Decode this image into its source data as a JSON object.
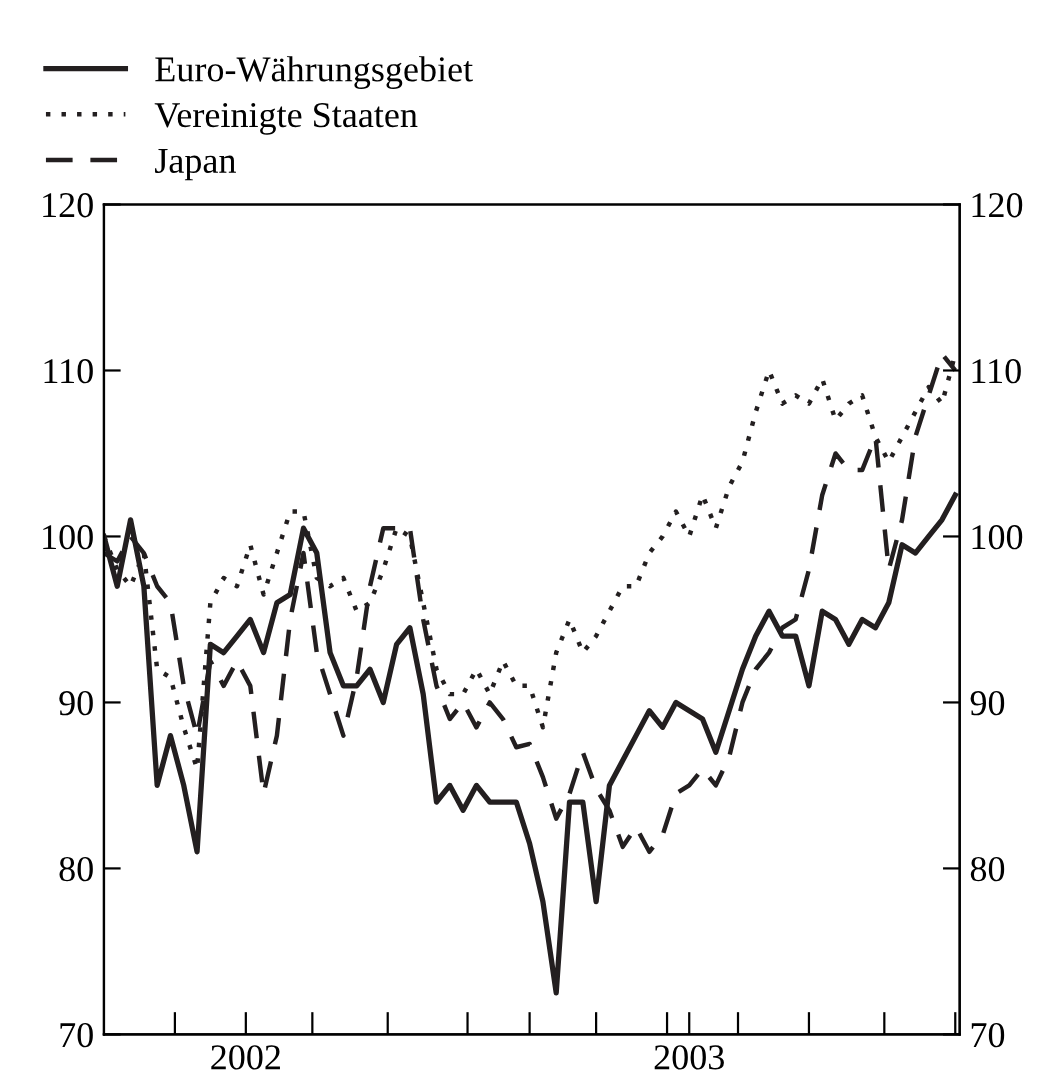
{
  "chart_data": {
    "type": "line",
    "x": [
      2002.18,
      2002.21,
      2002.24,
      2002.27,
      2002.3,
      2002.33,
      2002.36,
      2002.39,
      2002.42,
      2002.45,
      2002.48,
      2002.51,
      2002.54,
      2002.57,
      2002.6,
      2002.63,
      2002.66,
      2002.69,
      2002.72,
      2002.75,
      2002.78,
      2002.81,
      2002.84,
      2002.87,
      2002.9,
      2002.93,
      2002.96,
      2002.99,
      2003.02,
      2003.05,
      2003.08,
      2003.11,
      2003.14,
      2003.17,
      2003.2,
      2003.23,
      2003.26,
      2003.29,
      2003.32,
      2003.35,
      2003.38,
      2003.41,
      2003.44,
      2003.47,
      2003.5,
      2003.53,
      2003.56,
      2003.59,
      2003.62,
      2003.65,
      2003.68,
      2003.71,
      2003.74,
      2003.77,
      2003.8,
      2003.83,
      2003.86,
      2003.89,
      2003.92,
      2003.95,
      2003.98,
      2004.01,
      2004.04,
      2004.07,
      2004.1
    ],
    "series": [
      {
        "name": "Euro-Währungsgebiet",
        "color": "#231f20",
        "line_style": "solid",
        "values": [
          100,
          97,
          101,
          97,
          85,
          88,
          85,
          81,
          93.5,
          93,
          94,
          95,
          93,
          96,
          96.5,
          100.5,
          99,
          93,
          91,
          91,
          92,
          90,
          93.5,
          94.5,
          90.5,
          84,
          85,
          83.5,
          85,
          84,
          84,
          84,
          81.5,
          78,
          72.5,
          84,
          84,
          78,
          85,
          86.5,
          88,
          89.5,
          88.5,
          90,
          89.5,
          89,
          87,
          89.5,
          92,
          94,
          95.5,
          94,
          94,
          91,
          95.5,
          95,
          93.5,
          95,
          94.5,
          96,
          99.5,
          99,
          100,
          101,
          102.5
        ]
      },
      {
        "name": "Vereinigte Staaten",
        "color": "#231f20",
        "line_style": "dotted",
        "values": [
          100,
          98,
          97,
          99,
          92,
          91.5,
          88.5,
          86,
          96,
          97.5,
          97,
          99.5,
          96.5,
          99,
          101.5,
          101.5,
          97.5,
          97,
          97.5,
          95.5,
          96,
          98,
          100.5,
          100,
          96,
          92,
          90.5,
          90.5,
          92,
          90.5,
          92.5,
          91,
          91,
          88.5,
          93,
          95,
          93,
          94,
          95.5,
          97,
          97,
          99,
          100,
          101.5,
          100,
          102.5,
          100.5,
          103,
          104.5,
          107.5,
          110,
          108,
          108.5,
          108,
          109.5,
          107,
          108,
          108.5,
          106,
          104.5,
          106,
          107.5,
          109,
          108,
          111
        ]
      },
      {
        "name": "Japan",
        "color": "#231f20",
        "line_style": "dashed",
        "values": [
          99,
          98.5,
          100,
          99,
          97,
          96,
          91,
          88,
          92.5,
          91,
          92.5,
          91,
          84.5,
          88,
          95,
          99,
          93,
          90.5,
          88,
          91.5,
          97,
          100.5,
          100.5,
          100.5,
          95,
          91,
          89,
          90,
          88.5,
          90,
          89,
          87.3,
          87.5,
          85.5,
          83,
          84.5,
          87,
          84.8,
          83.5,
          81.3,
          82.5,
          81,
          82,
          84.5,
          85,
          86,
          85,
          86.7,
          90,
          92,
          93,
          94.5,
          95,
          98,
          102.5,
          105,
          104,
          104,
          106,
          98,
          101,
          106,
          108.5,
          111,
          110
        ]
      }
    ],
    "xlim": [
      2002.18,
      2004.11
    ],
    "xticks": [
      {
        "value": 2002.34,
        "label": null
      },
      {
        "value": 2002.5,
        "label": "2002"
      },
      {
        "value": 2002.65,
        "label": null
      },
      {
        "value": 2002.82,
        "label": null
      },
      {
        "value": 2003.0,
        "label": null
      },
      {
        "value": 2003.14,
        "label": null
      },
      {
        "value": 2003.29,
        "label": null
      },
      {
        "value": 2003.45,
        "label": null
      },
      {
        "value": 2003.5,
        "label": "2003"
      },
      {
        "value": 2003.61,
        "label": null
      },
      {
        "value": 2003.77,
        "label": null
      },
      {
        "value": 2003.94,
        "label": null
      },
      {
        "value": 2004.1,
        "label": null
      }
    ],
    "ylim": [
      70,
      120
    ],
    "yticks": [
      70,
      80,
      90,
      100,
      110,
      120
    ],
    "y2lim": [
      70,
      120
    ],
    "y2ticks": [
      70,
      80,
      90,
      100,
      110,
      120
    ],
    "grid": false,
    "legend": "top left",
    "marker": "none"
  }
}
